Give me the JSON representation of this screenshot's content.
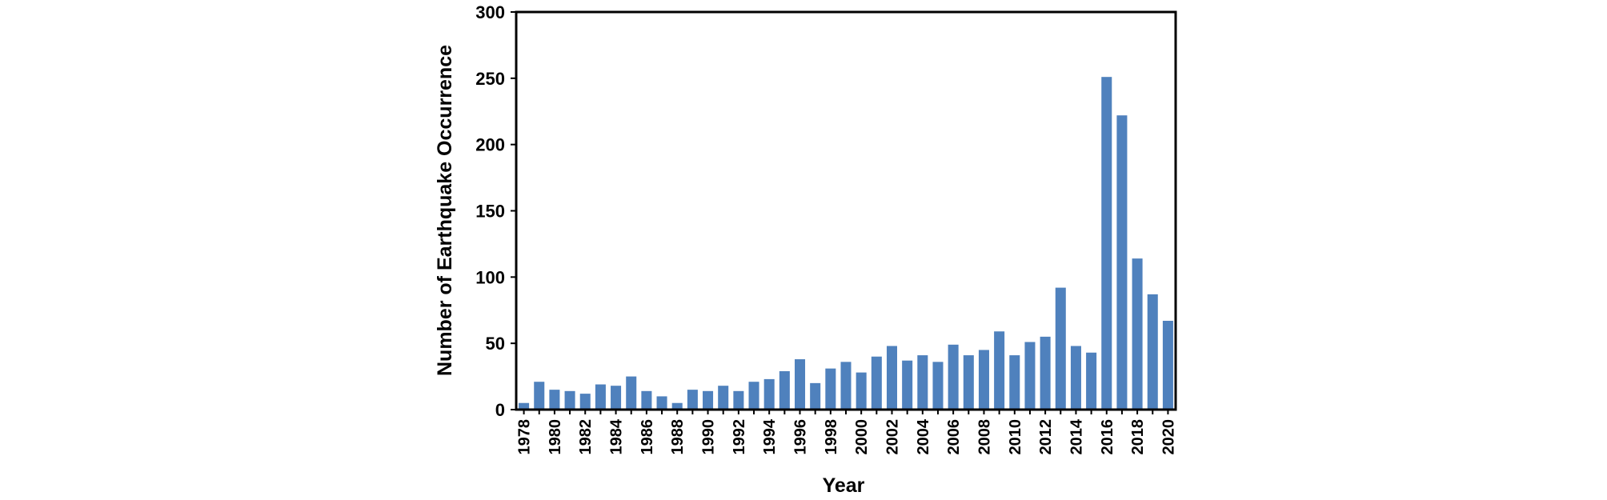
{
  "chart_data": {
    "type": "bar",
    "title": "",
    "xlabel": "Year",
    "ylabel": "Number of Earthquake Occurrence",
    "ylim": [
      0,
      300
    ],
    "yticks": [
      0,
      50,
      100,
      150,
      200,
      250,
      300
    ],
    "grid": false,
    "legend": "none",
    "bar_color": "#4f81bd",
    "categories": [
      "1978",
      "1979",
      "1980",
      "1981",
      "1982",
      "1983",
      "1984",
      "1985",
      "1986",
      "1987",
      "1988",
      "1989",
      "1990",
      "1991",
      "1992",
      "1993",
      "1994",
      "1995",
      "1996",
      "1997",
      "1998",
      "1999",
      "2000",
      "2001",
      "2002",
      "2003",
      "2004",
      "2005",
      "2006",
      "2007",
      "2008",
      "2009",
      "2010",
      "2011",
      "2012",
      "2013",
      "2014",
      "2015",
      "2016",
      "2017",
      "2018",
      "2019",
      "2020"
    ],
    "tick_labels": [
      "1978",
      "1980",
      "1982",
      "1984",
      "1986",
      "1988",
      "1990",
      "1992",
      "1994",
      "1996",
      "1998",
      "2000",
      "2002",
      "2004",
      "2006",
      "2008",
      "2010",
      "2012",
      "2014",
      "2016",
      "2018",
      "2020"
    ],
    "values": [
      5,
      21,
      15,
      14,
      12,
      19,
      18,
      25,
      14,
      10,
      5,
      15,
      14,
      18,
      14,
      21,
      23,
      29,
      38,
      20,
      31,
      36,
      28,
      40,
      48,
      37,
      41,
      36,
      49,
      41,
      45,
      59,
      41,
      51,
      55,
      92,
      48,
      43,
      251,
      222,
      114,
      87,
      67
    ]
  }
}
